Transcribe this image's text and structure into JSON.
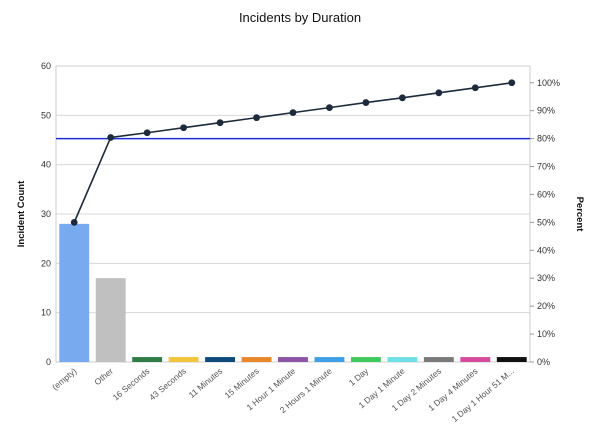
{
  "chart_data": {
    "type": "bar",
    "title": "Incidents by Duration",
    "ylabel": "Incident Count",
    "y2label": "Percent",
    "ylim": [
      0,
      60
    ],
    "y2lim": [
      0,
      106
    ],
    "yticks": [
      "0",
      "10",
      "20",
      "30",
      "40",
      "50",
      "60"
    ],
    "y2ticks": [
      "0%",
      "10%",
      "20%",
      "30%",
      "40%",
      "50%",
      "60%",
      "70%",
      "80%",
      "90%",
      "100%"
    ],
    "grid": true,
    "categories": [
      "(empty)",
      "Other",
      "16 Seconds",
      "43 Seconds",
      "11 Minutes",
      "15 Minutes",
      "1 Hour 1 Minute",
      "2 Hours 1 Minute",
      "1 Day",
      "1 Day 1 Minute",
      "1 Day 2 Minutes",
      "1 Day 4 Minutes",
      "1 Day 1 Hour 51 M..."
    ],
    "values": [
      28,
      17,
      1,
      1,
      1,
      1,
      1,
      1,
      1,
      1,
      1,
      1,
      1
    ],
    "bar_colors": [
      "#78aaf0",
      "#c0c0c0",
      "#2e7d46",
      "#f2c53d",
      "#0d4a7a",
      "#e8872b",
      "#8b54a6",
      "#3fa0e8",
      "#3ec95c",
      "#6fe0e6",
      "#7a7a7a",
      "#d64a9c",
      "#111111"
    ],
    "cumulative_percent": [
      50,
      80.4,
      82.1,
      83.9,
      85.7,
      87.5,
      89.3,
      91.1,
      92.9,
      94.6,
      96.4,
      98.2,
      100
    ],
    "threshold_percent": 80,
    "line_color": "#1c2a3c",
    "threshold_color": "#1f2fd8"
  }
}
